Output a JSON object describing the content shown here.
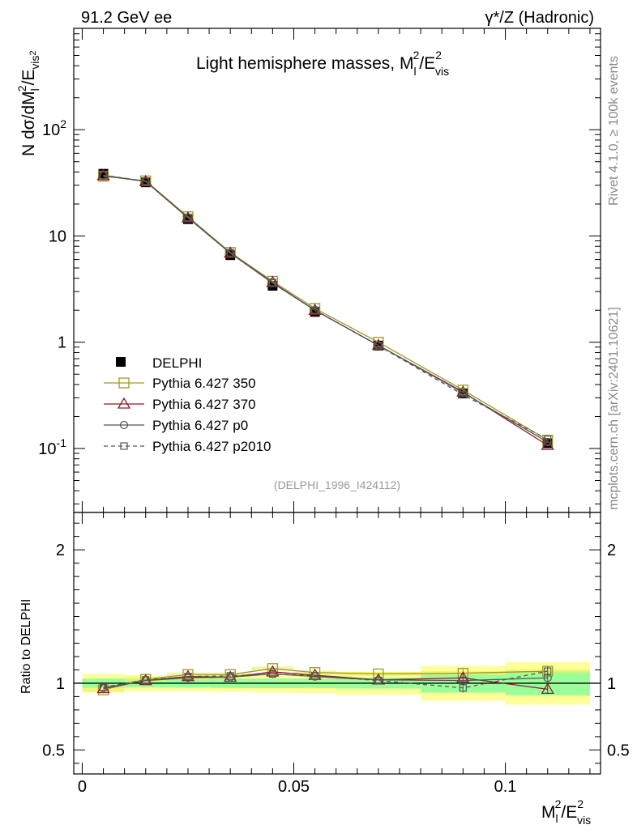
{
  "header": {
    "left": "91.2 GeV ee",
    "right_main": "γ*/Z (Hadronic)",
    "right_sup": "*"
  },
  "side": {
    "rivet": "Rivet 4.1.0, ≥ 100k events",
    "mcplots": "mcplots.cern.ch [arXiv:2401.10621]"
  },
  "chart_data": {
    "type": "line",
    "title": "Light hemisphere masses, M_l^2/E_vis^2",
    "analysis": "(DELPHI_1996_I424112)",
    "xlabel": "M_l^2/E_vis^2",
    "ylabel": "N dσ/dM_l^2/E_vis^2",
    "ratio_ylabel": "Ratio to DELPHI",
    "xlim": [
      -0.002,
      0.1225
    ],
    "ylim": [
      0.025,
      900
    ],
    "ratio_ylim": [
      0.32,
      2.28
    ],
    "yscale": "log",
    "x_ticks": [
      "0",
      "0.05",
      "0.1"
    ],
    "y_ticks": [
      "10^-1",
      "1",
      "10",
      "10^2"
    ],
    "ratio_ticks": [
      "0.5",
      "1",
      "2"
    ],
    "x": [
      0.005,
      0.015,
      0.025,
      0.035,
      0.045,
      0.055,
      0.07,
      0.09,
      0.11
    ],
    "bin_edges": [
      0.0,
      0.01,
      0.02,
      0.03,
      0.04,
      0.05,
      0.06,
      0.08,
      0.1,
      0.12
    ],
    "data": {
      "name": "DELPHI",
      "values": [
        38.5,
        32.0,
        14.4,
        6.6,
        3.4,
        1.93,
        0.93,
        0.33,
        0.112
      ],
      "ratio_band_inner": [
        0.035,
        0.03,
        0.03,
        0.035,
        0.035,
        0.035,
        0.04,
        0.07,
        0.09
      ],
      "ratio_band_outer": [
        0.07,
        0.06,
        0.06,
        0.065,
        0.07,
        0.075,
        0.085,
        0.13,
        0.16
      ]
    },
    "legend_position": "lower-left",
    "series": [
      {
        "name": "Pythia 6.427 350",
        "color": "#9a9a2a",
        "marker": "square",
        "dash": false,
        "values": [
          36.5,
          33.0,
          15.2,
          7.0,
          3.75,
          2.08,
          1.0,
          0.355,
          0.12
        ],
        "ratio": [
          0.95,
          1.03,
          1.065,
          1.065,
          1.11,
          1.08,
          1.07,
          1.075,
          1.09
        ],
        "band": true
      },
      {
        "name": "Pythia 6.427 370",
        "color": "#8b1a2a",
        "marker": "triangle",
        "dash": false,
        "values": [
          37.0,
          32.6,
          14.8,
          6.9,
          3.65,
          2.0,
          0.935,
          0.34,
          0.107
        ],
        "ratio": [
          0.96,
          1.02,
          1.05,
          1.045,
          1.085,
          1.06,
          1.025,
          1.04,
          0.955
        ],
        "band": false
      },
      {
        "name": "Pythia 6.427 p0",
        "color": "#555555",
        "marker": "circle",
        "dash": false,
        "values": [
          37.2,
          32.7,
          14.9,
          6.9,
          3.6,
          2.0,
          0.935,
          0.335,
          0.115
        ],
        "ratio": [
          0.965,
          1.02,
          1.04,
          1.045,
          1.07,
          1.05,
          1.025,
          1.02,
          1.04
        ],
        "band": false
      },
      {
        "name": "Pythia 6.427 p2010",
        "color": "#555555",
        "marker": "square-small",
        "dash": true,
        "values": [
          37.3,
          32.8,
          14.9,
          6.95,
          3.65,
          2.0,
          0.93,
          0.32,
          0.122
        ],
        "ratio": [
          0.97,
          1.025,
          1.05,
          1.055,
          1.07,
          1.055,
          1.02,
          0.965,
          1.09
        ],
        "band": false
      }
    ]
  }
}
